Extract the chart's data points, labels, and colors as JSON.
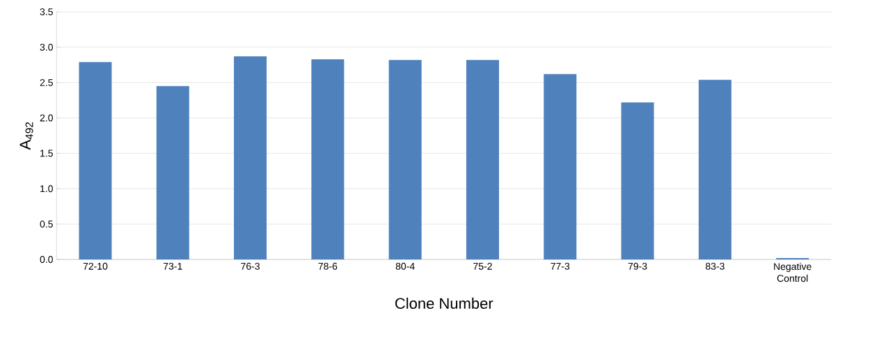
{
  "chart_data": {
    "type": "bar",
    "xlabel": "Clone Number",
    "ylabel": "A$_{492}$",
    "categories": [
      "72-10",
      "73-1",
      "76-3",
      "78-6",
      "80-4",
      "75-2",
      "77-3",
      "79-3",
      "83-3",
      "Negative Control"
    ],
    "values": [
      2.79,
      2.45,
      2.87,
      2.83,
      2.82,
      2.82,
      2.62,
      2.22,
      2.54,
      0.02
    ],
    "color": "#4f81bd",
    "ylim": [
      0,
      3.5
    ],
    "yticks": [
      {
        "value": 0,
        "label": "0.0"
      },
      {
        "value": 0.5,
        "label": "0.5"
      },
      {
        "value": 1,
        "label": "1.0"
      },
      {
        "value": 1.5,
        "label": "1.5"
      },
      {
        "value": 2,
        "label": "2.0"
      },
      {
        "value": 2.5,
        "label": "2.5"
      },
      {
        "value": 3,
        "label": "3.0"
      },
      {
        "value": 3.5,
        "label": "3.5"
      }
    ],
    "grid": "y"
  }
}
